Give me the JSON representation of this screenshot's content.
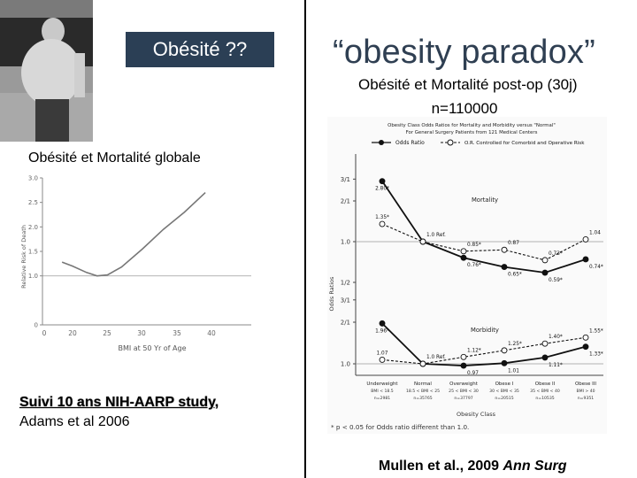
{
  "slide": {
    "title_box": "Obésité ??",
    "paradox_title": "“obesity paradox”",
    "post_op_title": "Obésité et Mortalité post-op (30j)",
    "n_value": "n=110000",
    "global_title": "Obésité et Mortalité globale",
    "study_label": "Suivi 10 ans NIH-AARP study,",
    "study_authors": "Adams et al 2006",
    "citation_authors": "Mullen et al., 2009 ",
    "citation_journal": "Ann Surg",
    "photo_desc": "man-with-belly-photo"
  },
  "chart_data": [
    {
      "type": "line",
      "title": "",
      "xlabel": "BMI at 50 Yr of Age",
      "ylabel": "Relative Risk of Death",
      "xlim": [
        15,
        40
      ],
      "ylim": [
        0,
        3.0
      ],
      "xticks": [
        "0",
        "20",
        "25",
        "30",
        "35",
        "40"
      ],
      "yticks": [
        "0",
        "1.0",
        "1.5",
        "2.0",
        "2.5",
        "3.0"
      ],
      "x": [
        18.5,
        20,
        22,
        23.5,
        25,
        27,
        30,
        33,
        36,
        39
      ],
      "series": [
        {
          "name": "Relative Risk",
          "values": [
            1.28,
            1.2,
            1.07,
            1.0,
            1.02,
            1.18,
            1.55,
            1.95,
            2.3,
            2.7
          ]
        }
      ],
      "reference_line": 1.0
    },
    {
      "type": "line",
      "title": "Obesity Class Odds Ratios for Mortality and Morbidity versus \"Normal\"",
      "subtitle": "For General Surgery Patients from 121 Medical Centers",
      "legend": [
        "Odds Ratio",
        "O.R. Controlled for Comorbid and Operative Risk"
      ],
      "ylabel": "Odds Ratios",
      "xlabel": "Obesity Class",
      "categories": [
        {
          "name": "Underweight",
          "bmi": "BMI < 18.5",
          "n": "n=2981"
        },
        {
          "name": "Normal",
          "bmi": "18.5 < BMI < 25",
          "n": "n=35765"
        },
        {
          "name": "Overweight",
          "bmi": "25 < BMI < 30",
          "n": "n=37797"
        },
        {
          "name": "Obese I",
          "bmi": "30 < BMI < 35",
          "n": "n=20515"
        },
        {
          "name": "Obese II",
          "bmi": "35 < BMI < 40",
          "n": "n=10535"
        },
        {
          "name": "Obese III",
          "bmi": "BMI > 40",
          "n": "n=9351"
        }
      ],
      "panels": [
        {
          "name": "Mortality",
          "yticks": [
            "3/1",
            "2/1",
            "1.0",
            "1/2"
          ],
          "series": [
            {
              "name": "Odds Ratio",
              "values": [
                2.8,
                1.0,
                0.76,
                0.65,
                0.59,
                0.74
              ],
              "labels": [
                "2.80*",
                "",
                "0.76*",
                "0.65*",
                "0.59*",
                "0.74*"
              ]
            },
            {
              "name": "O.R. Controlled",
              "values": [
                1.35,
                1.0,
                0.85,
                0.87,
                0.73,
                1.04
              ],
              "labels": [
                "1.35*",
                "1.0 Ref.",
                "0.85*",
                "0.87",
                "0.73*",
                "1.04"
              ]
            }
          ]
        },
        {
          "name": "Morbidity",
          "yticks": [
            "3/1",
            "2/1",
            "1.0"
          ],
          "series": [
            {
              "name": "Odds Ratio",
              "values": [
                1.96,
                1.0,
                0.97,
                1.01,
                1.11,
                1.33
              ],
              "labels": [
                "1.96*",
                "",
                "0.97",
                "1.01",
                "1.11*",
                "1.33*"
              ]
            },
            {
              "name": "O.R. Controlled",
              "values": [
                1.07,
                1.0,
                1.12,
                1.25,
                1.4,
                1.55
              ],
              "labels": [
                "1.07",
                "1.0 Ref.",
                "1.12*",
                "1.25*",
                "1.40*",
                "1.55*"
              ]
            }
          ]
        }
      ],
      "footnote": "* p < 0.05 for Odds ratio different than 1.0."
    }
  ]
}
